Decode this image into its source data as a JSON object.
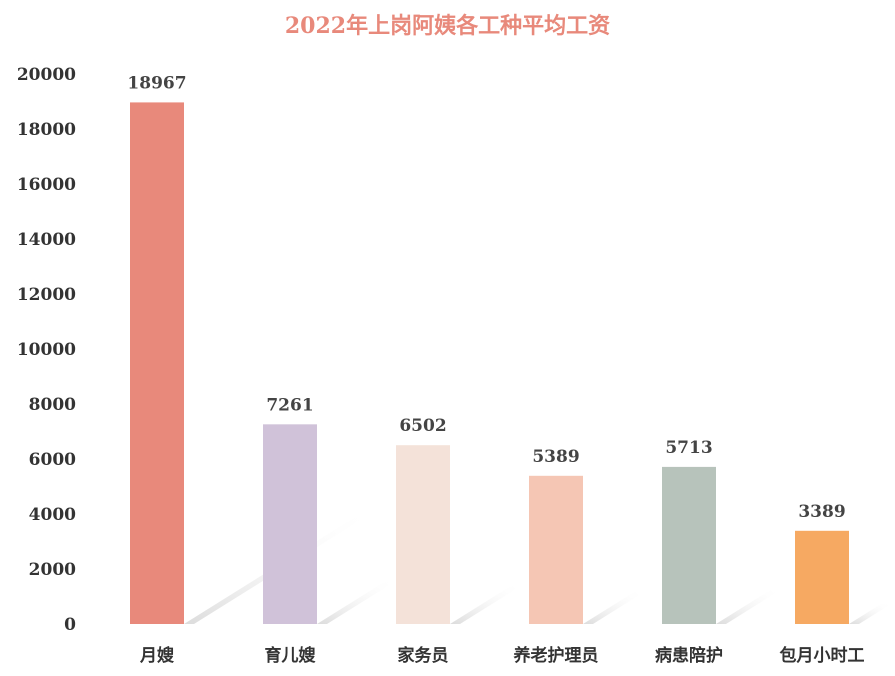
{
  "chart_data": {
    "type": "bar",
    "title": "2022年上岗阿姨各工种平均工资",
    "xlabel": "",
    "ylabel": "",
    "categories": [
      "月嫂",
      "育儿嫂",
      "家务员",
      "养老护理员",
      "病患陪护",
      "包月小时工"
    ],
    "values": [
      18967,
      7261,
      6502,
      5389,
      5713,
      3389
    ],
    "colors": [
      "#e8897b",
      "#d0c2d9",
      "#f4e2d9",
      "#f5c6b4",
      "#b7c3bb",
      "#f6a962"
    ],
    "ylim": [
      0,
      20000
    ],
    "yticks": [
      0,
      2000,
      4000,
      6000,
      8000,
      10000,
      12000,
      14000,
      16000,
      18000,
      20000
    ],
    "grid": false,
    "legend": "none",
    "data_labels": [
      "18967",
      "7261",
      "6502",
      "5389",
      "5713",
      "3389"
    ]
  }
}
